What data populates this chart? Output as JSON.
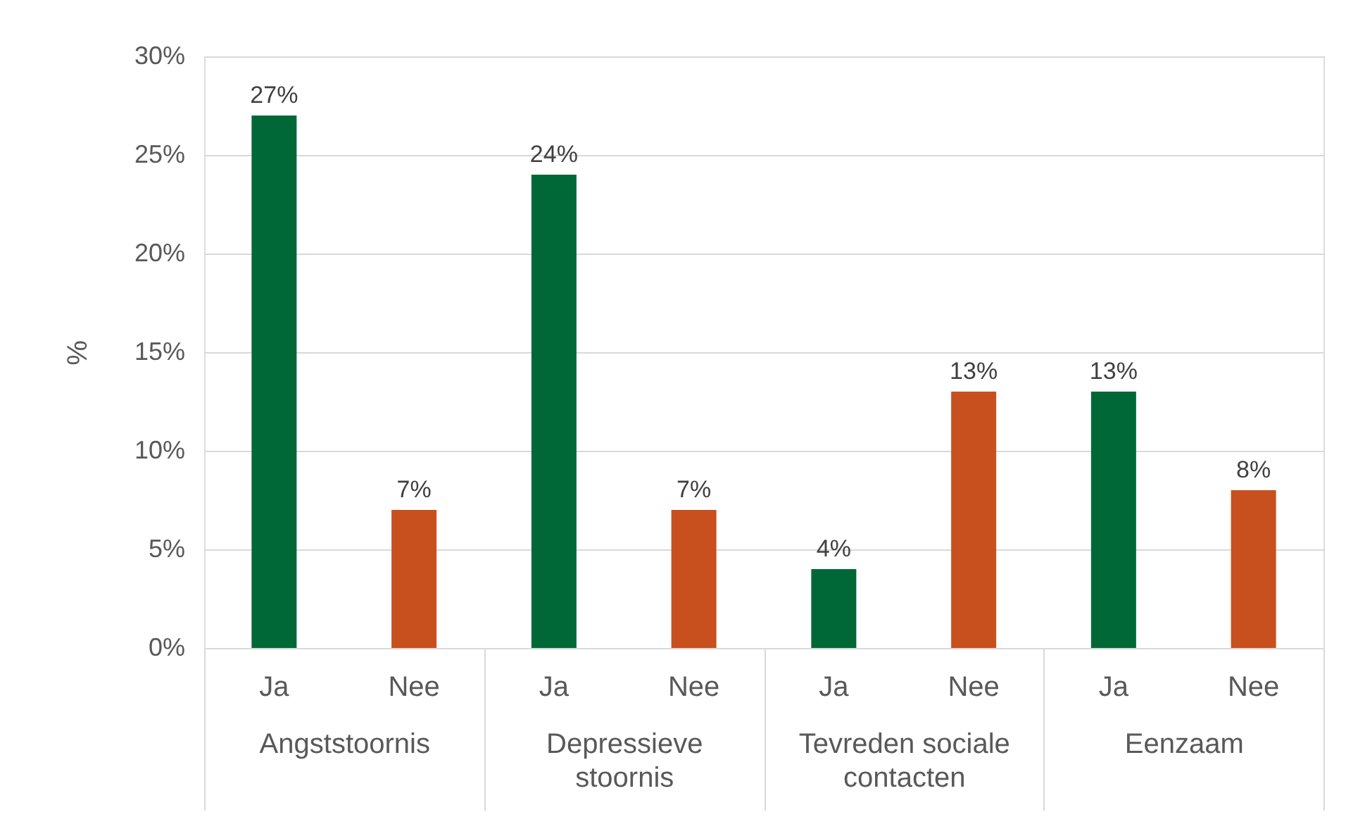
{
  "chart_data": {
    "type": "bar",
    "ylabel": "%",
    "categories": [
      "Angststoornis",
      "Depressieve stoornis",
      "Tevreden sociale contacten",
      "Eenzaam"
    ],
    "series": [
      {
        "name": "Ja",
        "color": "#006837",
        "values": [
          27,
          24,
          4,
          13
        ],
        "value_labels": [
          "27%",
          "24%",
          "4%",
          "13%"
        ]
      },
      {
        "name": "Nee",
        "color": "#c8501e",
        "values": [
          7,
          7,
          13,
          8
        ],
        "value_labels": [
          "7%",
          "7%",
          "13%",
          "8%"
        ]
      }
    ],
    "ylim": [
      0,
      30
    ],
    "yticks": [
      {
        "value": 0,
        "label": "0%"
      },
      {
        "value": 5,
        "label": "5%"
      },
      {
        "value": 10,
        "label": "10%"
      },
      {
        "value": 15,
        "label": "15%"
      },
      {
        "value": 20,
        "label": "20%"
      },
      {
        "value": 25,
        "label": "25%"
      },
      {
        "value": 30,
        "label": "30%"
      }
    ],
    "grid": "y"
  }
}
